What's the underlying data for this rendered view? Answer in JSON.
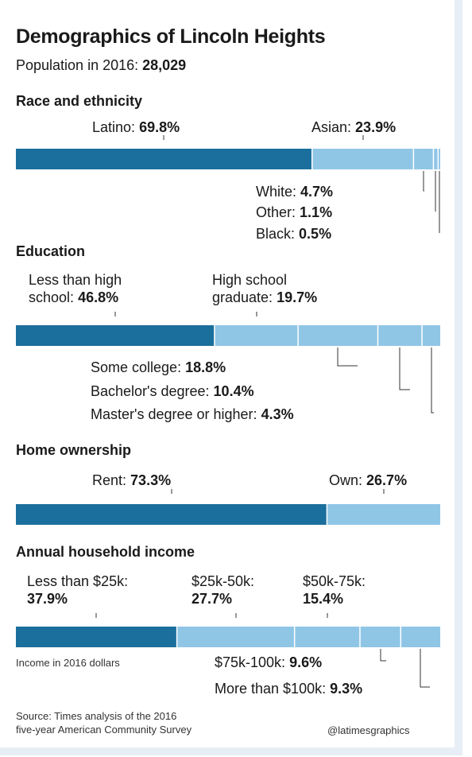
{
  "header": {
    "title": "Demographics of Lincoln Heights",
    "population_label": "Population in 2016:",
    "population_value": "28,029"
  },
  "colors": {
    "dark": "#1b6f9c",
    "light": "#8fc6e6",
    "leader": "#333333"
  },
  "chart_data": [
    {
      "type": "bar",
      "stacked": true,
      "title": "Race and ethnicity",
      "categories": [
        "Latino",
        "Asian",
        "White",
        "Other",
        "Black"
      ],
      "values": [
        69.8,
        23.9,
        4.7,
        1.1,
        0.5
      ],
      "labels": [
        {
          "name": "Latino:",
          "value": "69.8%"
        },
        {
          "name": "Asian:",
          "value": "23.9%"
        },
        {
          "name": "White:",
          "value": "4.7%"
        },
        {
          "name": "Other:",
          "value": "1.1%"
        },
        {
          "name": "Black:",
          "value": "0.5%"
        }
      ]
    },
    {
      "type": "bar",
      "stacked": true,
      "title": "Education",
      "categories": [
        "Less than high school",
        "High school graduate",
        "Some college",
        "Bachelor's degree",
        "Master's degree or higher"
      ],
      "values": [
        46.8,
        19.7,
        18.8,
        10.4,
        4.3
      ],
      "labels": [
        {
          "line1": "Less than high",
          "line2": "school:",
          "value": "46.8%"
        },
        {
          "line1": "High school",
          "line2": "graduate:",
          "value": "19.7%"
        },
        {
          "name": "Some college:",
          "value": "18.8%"
        },
        {
          "name": "Bachelor's degree:",
          "value": "10.4%"
        },
        {
          "name": "Master's degree or higher:",
          "value": "4.3%"
        }
      ]
    },
    {
      "type": "bar",
      "stacked": true,
      "title": "Home ownership",
      "categories": [
        "Rent",
        "Own"
      ],
      "values": [
        73.3,
        26.7
      ],
      "labels": [
        {
          "name": "Rent:",
          "value": "73.3%"
        },
        {
          "name": "Own:",
          "value": "26.7%"
        }
      ]
    },
    {
      "type": "bar",
      "stacked": true,
      "title": "Annual household income",
      "note": "Income in 2016 dollars",
      "categories": [
        "Less than $25k",
        "$25k-50k",
        "$50k-75k",
        "$75k-100k",
        "More than $100k"
      ],
      "values": [
        37.9,
        27.7,
        15.4,
        9.6,
        9.3
      ],
      "labels": [
        {
          "line1": "Less than $25k:",
          "value": "37.9%"
        },
        {
          "line1": "$25k-50k:",
          "value": "27.7%"
        },
        {
          "line1": "$50k-75k:",
          "value": "15.4%"
        },
        {
          "name": "$75k-100k:",
          "value": "9.6%"
        },
        {
          "name": "More than $100k:",
          "value": "9.3%"
        }
      ]
    }
  ],
  "footer": {
    "source_line1": "Source: Times analysis of the 2016",
    "source_line2": "five-year American Community Survey",
    "credit": "@latimesgraphics"
  }
}
